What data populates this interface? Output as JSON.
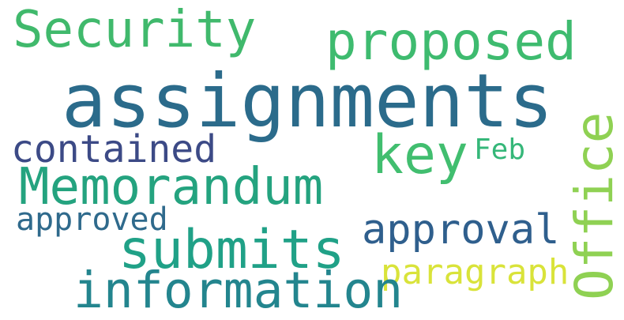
{
  "word_cloud": {
    "words": [
      {
        "text": "Security",
        "color": "#40b96c"
      },
      {
        "text": "proposed",
        "color": "#3ebb6f"
      },
      {
        "text": "assignments",
        "color": "#2b6b8b"
      },
      {
        "text": "contained",
        "color": "#3c4a86"
      },
      {
        "text": "key",
        "color": "#41be6f"
      },
      {
        "text": "Feb",
        "color": "#35b779"
      },
      {
        "text": "Office",
        "color": "#8fd153"
      },
      {
        "text": "Memorandum",
        "color": "#24a37f"
      },
      {
        "text": "approved",
        "color": "#2f6a8c"
      },
      {
        "text": "approval",
        "color": "#2f5f8d"
      },
      {
        "text": "submits",
        "color": "#20a187"
      },
      {
        "text": "paragraph",
        "color": "#d9e33a"
      },
      {
        "text": "information",
        "color": "#23858e"
      }
    ]
  }
}
